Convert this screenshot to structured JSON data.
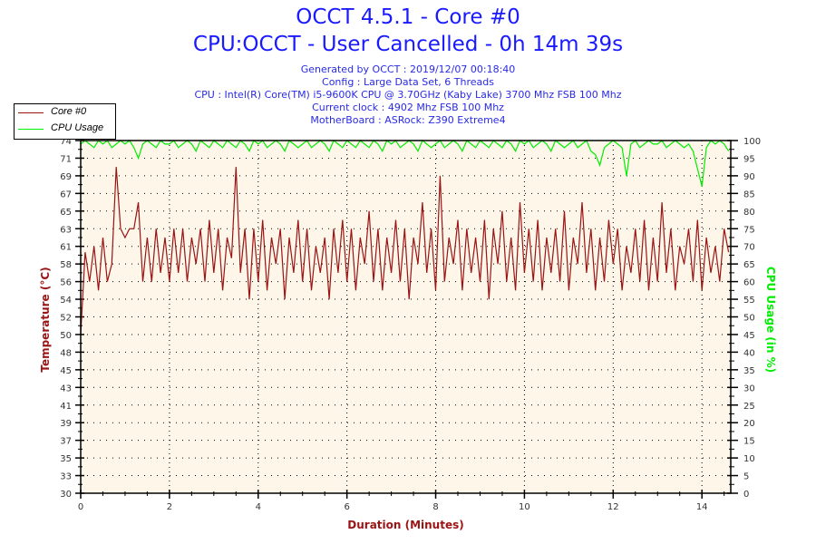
{
  "header": {
    "title": "OCCT 4.5.1 - Core #0",
    "subtitle": "CPU:OCCT - User Cancelled - 0h 14m 39s",
    "info": [
      "Generated by OCCT : 2019/12/07 00:18:40",
      "Config : Large Data Set, 6 Threads",
      "CPU : Intel(R) Core(TM) i5-9600K CPU @ 3.70GHz (Kaby Lake) 3700 Mhz FSB 100 Mhz",
      "Current clock : 4902 Mhz FSB 100 Mhz",
      "MotherBoard : ASRock: Z390 Extreme4"
    ]
  },
  "colors": {
    "title": "#1a1aff",
    "temperature": "#9b1414",
    "cpu_usage": "#00ee00",
    "plot_bg": "#fdf6e9"
  },
  "chart_data": {
    "type": "line",
    "xlabel": "Duration (Minutes)",
    "ylabel_left": "Temperature (°C)",
    "ylabel_right": "CPU Usage (in %)",
    "xlim": [
      0,
      14.65
    ],
    "ylim_left": [
      30,
      74
    ],
    "ylim_right": [
      0,
      100
    ],
    "grid": true,
    "legend_position": "top-left",
    "x_ticks": [
      "0",
      "2",
      "4",
      "6",
      "8",
      "10",
      "12",
      "14"
    ],
    "y_left_ticks": [
      "30",
      "33",
      "35",
      "37",
      "39",
      "41",
      "43",
      "45",
      "48",
      "50",
      "52",
      "54",
      "56",
      "58",
      "61",
      "63",
      "65",
      "67",
      "69",
      "71",
      "74"
    ],
    "y_right_ticks": [
      "0",
      "5",
      "10",
      "15",
      "20",
      "25",
      "30",
      "35",
      "40",
      "45",
      "50",
      "55",
      "60",
      "65",
      "70",
      "75",
      "80",
      "85",
      "90",
      "95",
      "100"
    ],
    "x": [
      0,
      0.1,
      0.2,
      0.3,
      0.4,
      0.5,
      0.6,
      0.7,
      0.8,
      0.9,
      1.0,
      1.1,
      1.2,
      1.3,
      1.4,
      1.5,
      1.6,
      1.7,
      1.8,
      1.9,
      2.0,
      2.1,
      2.2,
      2.3,
      2.4,
      2.5,
      2.6,
      2.7,
      2.8,
      2.9,
      3.0,
      3.1,
      3.2,
      3.3,
      3.4,
      3.5,
      3.6,
      3.7,
      3.8,
      3.9,
      4.0,
      4.1,
      4.2,
      4.3,
      4.4,
      4.5,
      4.6,
      4.7,
      4.8,
      4.9,
      5.0,
      5.1,
      5.2,
      5.3,
      5.4,
      5.5,
      5.6,
      5.7,
      5.8,
      5.9,
      6.0,
      6.1,
      6.2,
      6.3,
      6.4,
      6.5,
      6.6,
      6.7,
      6.8,
      6.9,
      7.0,
      7.1,
      7.2,
      7.3,
      7.4,
      7.5,
      7.6,
      7.7,
      7.8,
      7.9,
      8.0,
      8.1,
      8.2,
      8.3,
      8.4,
      8.5,
      8.6,
      8.7,
      8.8,
      8.9,
      9.0,
      9.1,
      9.2,
      9.3,
      9.4,
      9.5,
      9.6,
      9.7,
      9.8,
      9.9,
      10.0,
      10.1,
      10.2,
      10.3,
      10.4,
      10.5,
      10.6,
      10.7,
      10.8,
      10.9,
      11.0,
      11.1,
      11.2,
      11.3,
      11.4,
      11.5,
      11.6,
      11.7,
      11.8,
      11.9,
      12.0,
      12.1,
      12.2,
      12.3,
      12.4,
      12.5,
      12.6,
      12.7,
      12.8,
      12.9,
      13.0,
      13.1,
      13.2,
      13.3,
      13.4,
      13.5,
      13.6,
      13.7,
      13.8,
      13.9,
      14.0,
      14.1,
      14.2,
      14.3,
      14.4,
      14.5,
      14.6
    ],
    "series": [
      {
        "name": "Core #0",
        "axis": "left",
        "values": [
          50,
          60,
          56,
          61,
          55,
          62,
          56,
          58,
          70,
          63,
          62,
          63,
          63,
          66,
          56,
          62,
          56,
          63,
          57,
          62,
          56,
          63,
          57,
          63,
          56,
          62,
          58,
          63,
          56,
          64,
          57,
          63,
          55,
          62,
          59,
          70,
          57,
          63,
          54,
          63,
          56,
          64,
          55,
          62,
          58,
          63,
          54,
          62,
          57,
          64,
          56,
          63,
          55,
          61,
          57,
          62,
          54,
          63,
          57,
          64,
          56,
          63,
          55,
          62,
          58,
          65,
          56,
          63,
          55,
          62,
          57,
          64,
          56,
          63,
          54,
          62,
          58,
          66,
          57,
          63,
          55,
          69,
          56,
          62,
          58,
          64,
          55,
          63,
          57,
          62,
          56,
          64,
          54,
          63,
          58,
          65,
          56,
          62,
          55,
          66,
          57,
          63,
          56,
          64,
          55,
          62,
          57,
          63,
          56,
          65,
          55,
          62,
          58,
          66,
          57,
          63,
          55,
          62,
          56,
          64,
          58,
          63,
          55,
          61,
          57,
          63,
          56,
          64,
          55,
          62,
          56,
          66,
          57,
          63,
          55,
          61,
          58,
          63,
          56,
          64,
          55,
          62,
          57,
          61,
          56,
          63,
          60
        ]
      },
      {
        "name": "CPU Usage",
        "axis": "right",
        "values": [
          99,
          100,
          99,
          98,
          100,
          99,
          100,
          98,
          99,
          100,
          99,
          100,
          98,
          95,
          99,
          100,
          99,
          98,
          100,
          99,
          99,
          100,
          98,
          99,
          100,
          99,
          97,
          100,
          99,
          98,
          100,
          99,
          98,
          100,
          99,
          98,
          100,
          99,
          97,
          100,
          99,
          100,
          98,
          99,
          100,
          99,
          97,
          100,
          99,
          98,
          99,
          100,
          98,
          99,
          100,
          99,
          97,
          100,
          99,
          98,
          100,
          99,
          98,
          100,
          99,
          98,
          100,
          99,
          97,
          100,
          99,
          100,
          98,
          99,
          100,
          99,
          97,
          100,
          99,
          98,
          99,
          100,
          98,
          99,
          100,
          99,
          97,
          100,
          99,
          98,
          100,
          99,
          98,
          100,
          99,
          98,
          100,
          99,
          97,
          100,
          99,
          100,
          98,
          99,
          100,
          99,
          97,
          100,
          99,
          98,
          99,
          100,
          98,
          99,
          100,
          97,
          96,
          93,
          98,
          99,
          100,
          99,
          98,
          90,
          99,
          100,
          98,
          99,
          100,
          99,
          99,
          100,
          98,
          99,
          100,
          99,
          98,
          99,
          97,
          92,
          87,
          98,
          100,
          99,
          100,
          99,
          97
        ]
      }
    ]
  }
}
